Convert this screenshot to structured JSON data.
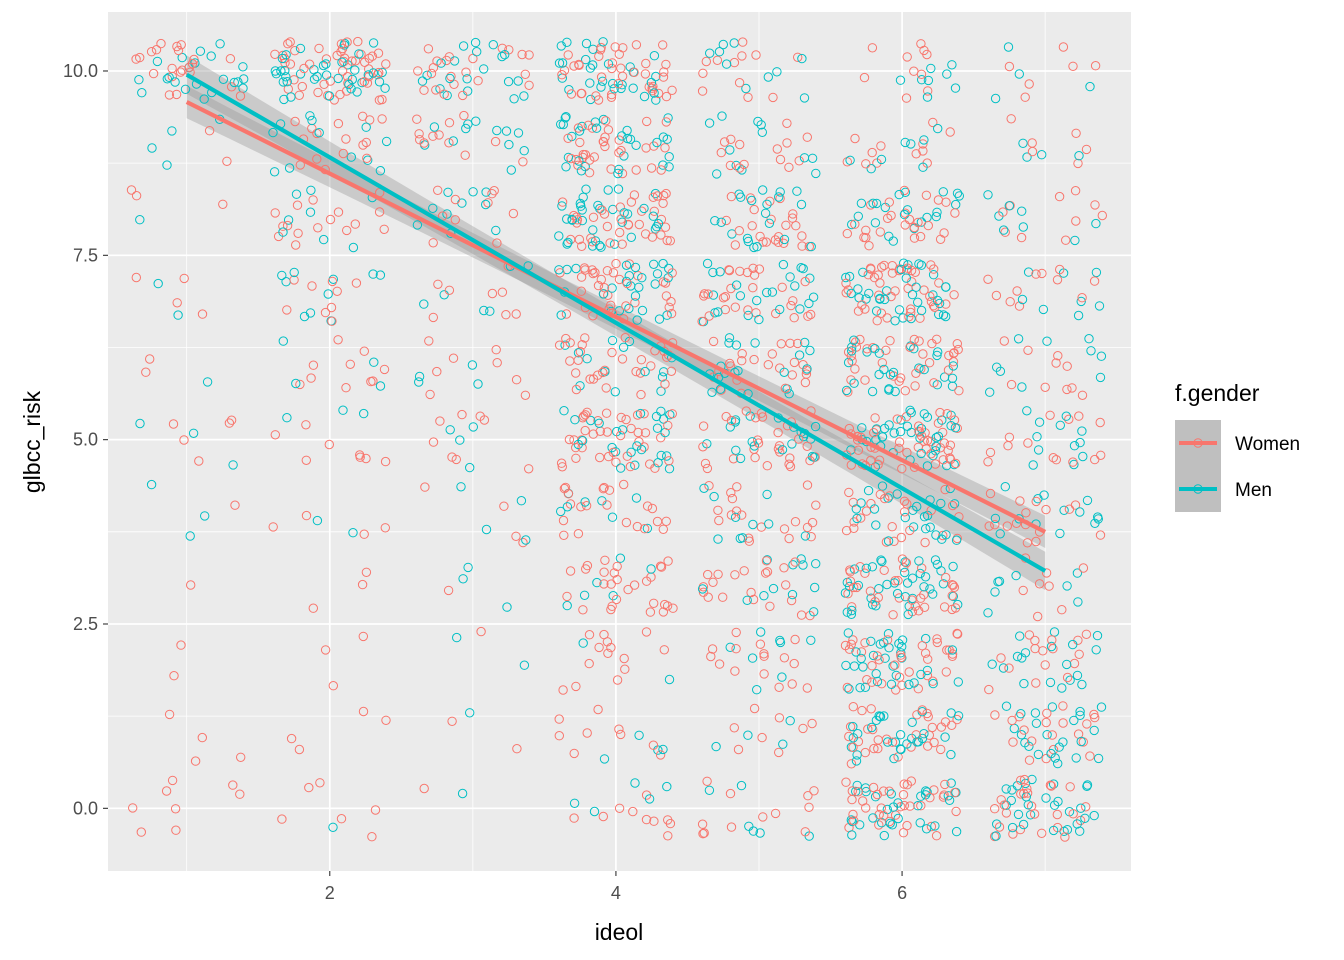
{
  "chart_data": {
    "type": "scatter",
    "subtype": "jittered scatter with linear fit and 95% confidence band per group",
    "xlabel": "ideol",
    "ylabel": "glbcc_risk",
    "xlim": [
      0.45,
      7.6
    ],
    "ylim": [
      -0.85,
      10.8
    ],
    "x_ticks": [
      2,
      4,
      6
    ],
    "x_tick_labels": [
      "2",
      "4",
      "6"
    ],
    "y_ticks": [
      0,
      2.5,
      5,
      7.5,
      10
    ],
    "y_tick_labels": [
      "0.0",
      "2.5",
      "5.0",
      "7.5",
      "10.0"
    ],
    "grid": true,
    "legend": {
      "title": "f.gender",
      "position": "right"
    },
    "jitter": {
      "x": 0.4,
      "y": 0.4,
      "ideol_levels": [
        1,
        2,
        3,
        4,
        5,
        6,
        7
      ],
      "risk_levels": [
        0,
        1,
        2,
        3,
        4,
        5,
        6,
        7,
        8,
        9,
        10
      ]
    },
    "series": [
      {
        "name": "Women",
        "color": "#F8766D",
        "fit": {
          "x": [
            1,
            7
          ],
          "y": [
            9.58,
            3.75
          ],
          "band_halfwidth": [
            0.22,
            0.16
          ]
        },
        "counts_by_ideol": [
          [
            8,
            4,
            2,
            1,
            1,
            5,
            2,
            4,
            3,
            2,
            22
          ],
          [
            6,
            4,
            3,
            3,
            4,
            8,
            10,
            9,
            16,
            16,
            50
          ],
          [
            1,
            2,
            1,
            1,
            4,
            8,
            8,
            8,
            10,
            12,
            22
          ],
          [
            10,
            9,
            14,
            28,
            22,
            40,
            32,
            36,
            38,
            33,
            40
          ],
          [
            12,
            8,
            16,
            21,
            20,
            30,
            24,
            28,
            24,
            14,
            12
          ],
          [
            38,
            32,
            36,
            36,
            26,
            52,
            38,
            44,
            26,
            12,
            10
          ],
          [
            26,
            20,
            16,
            8,
            16,
            14,
            10,
            11,
            10,
            6,
            6
          ]
        ]
      },
      {
        "name": "Men",
        "color": "#00BFC4",
        "fit": {
          "x": [
            1,
            7
          ],
          "y": [
            9.95,
            3.22
          ],
          "band_halfwidth": [
            0.26,
            0.18
          ]
        },
        "counts_by_ideol": [
          [
            0,
            0,
            0,
            0,
            3,
            3,
            1,
            2,
            1,
            4,
            22
          ],
          [
            1,
            0,
            0,
            0,
            2,
            3,
            4,
            10,
            8,
            12,
            38
          ],
          [
            1,
            1,
            2,
            3,
            4,
            4,
            4,
            6,
            10,
            12,
            20
          ],
          [
            5,
            4,
            2,
            6,
            8,
            26,
            14,
            28,
            34,
            30,
            30
          ],
          [
            6,
            4,
            8,
            12,
            10,
            20,
            20,
            24,
            20,
            12,
            10
          ],
          [
            32,
            30,
            34,
            40,
            26,
            38,
            28,
            36,
            22,
            8,
            8
          ],
          [
            30,
            24,
            18,
            8,
            14,
            12,
            10,
            8,
            8,
            4,
            4
          ]
        ]
      }
    ]
  }
}
